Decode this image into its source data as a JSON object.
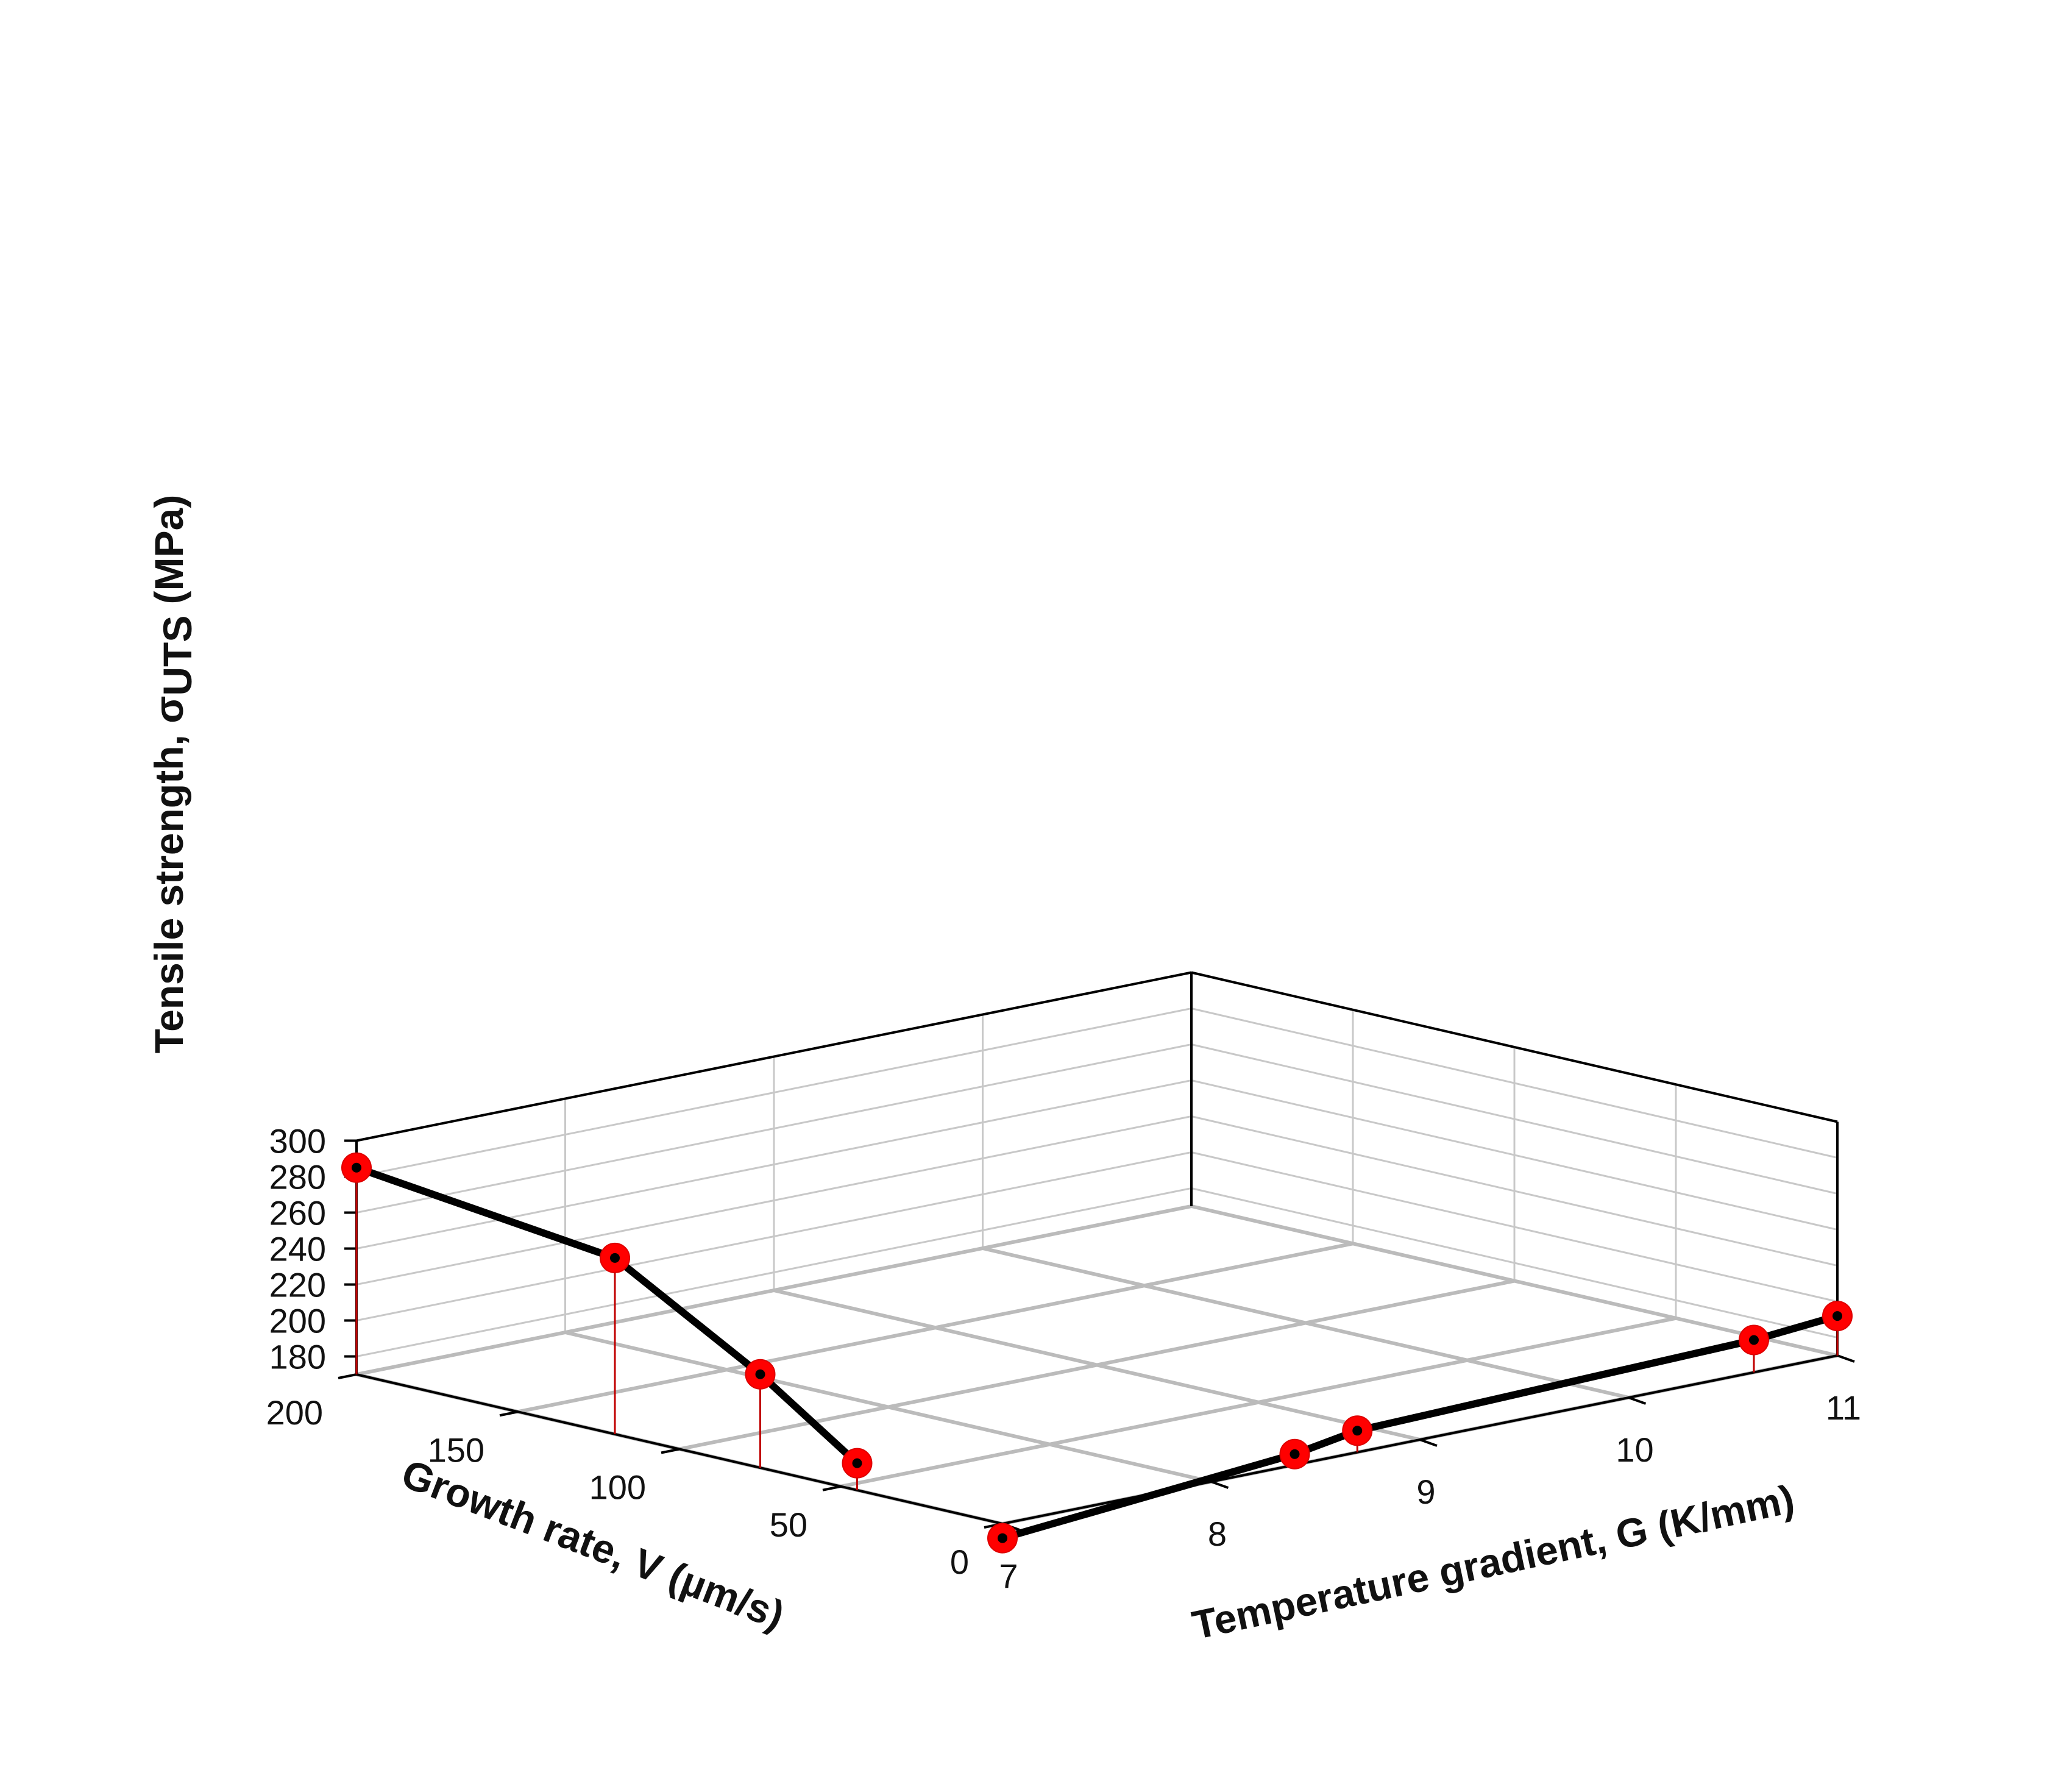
{
  "chart_data": {
    "type": "scatter",
    "subtype": "3d-scatter-with-lines",
    "zlabel": {
      "prefix": "Tensile strength, σ",
      "subscript": "UTS",
      "suffix": " (MPa)"
    },
    "xlabel": "Growth rate, V (µm/s)",
    "ylabel": "Temperature gradient, G (K/mm)",
    "xlim": [
      0,
      200
    ],
    "ylim": [
      7,
      11
    ],
    "zlim": [
      170,
      300
    ],
    "x_ticks": [
      "200",
      "150",
      "100",
      "50",
      "0"
    ],
    "y_ticks": [
      "7",
      "8",
      "9",
      "10",
      "11"
    ],
    "z_ticks": [
      "300",
      "280",
      "260",
      "240",
      "220",
      "200",
      "180"
    ],
    "grid": true,
    "series": [
      {
        "points": [
          {
            "V": 200,
            "G": 7,
            "sigma": 285
          },
          {
            "V": 120,
            "G": 7,
            "sigma": 268
          },
          {
            "V": 75,
            "G": 7,
            "sigma": 222
          },
          {
            "V": 45,
            "G": 7,
            "sigma": 185
          }
        ]
      },
      {
        "points": [
          {
            "V": 0,
            "G": 7,
            "sigma": 162
          },
          {
            "V": 0,
            "G": 8.4,
            "sigma": 176
          },
          {
            "V": 0,
            "G": 8.7,
            "sigma": 182
          },
          {
            "V": 0,
            "G": 10.6,
            "sigma": 188
          },
          {
            "V": 0,
            "G": 11,
            "sigma": 192
          }
        ]
      }
    ],
    "colors": {
      "line": "#000000",
      "marker": "#ff0000",
      "drop_line": "#c00000",
      "grid": "#c8c8c8",
      "floor_grid": "#bbbbbb",
      "axis": "#000000"
    }
  }
}
